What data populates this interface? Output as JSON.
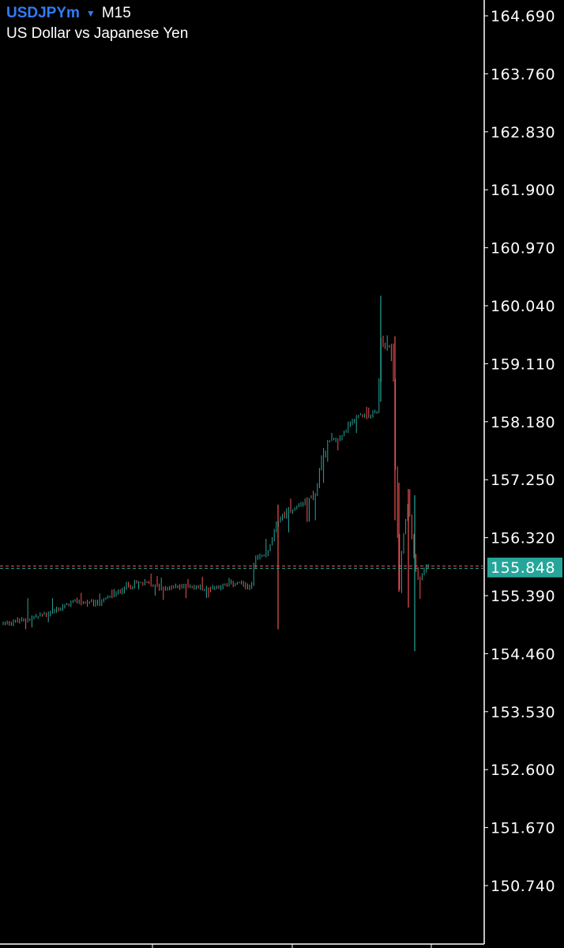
{
  "header": {
    "symbol": "USDJPYm",
    "timeframe": "M15",
    "description": "US Dollar vs Japanese Yen"
  },
  "colors": {
    "background": "#000000",
    "axis": "#ffffff",
    "bull_candle": "#26a69a",
    "bear_candle": "#ef5350",
    "current_price_box": "#26a69a",
    "symbol_text": "#2f7df6"
  },
  "current_price": {
    "value": 155.848,
    "label": "155.848"
  },
  "price_axis": {
    "labels": [
      "164.690",
      "163.760",
      "162.830",
      "161.900",
      "160.970",
      "160.040",
      "159.110",
      "158.180",
      "157.250",
      "156.320",
      "155.390",
      "154.460",
      "153.530",
      "152.600",
      "151.670",
      "150.740"
    ]
  },
  "chart_data": {
    "type": "candlestick",
    "title": "US Dollar vs Japanese Yen",
    "symbol": "USDJPYm",
    "timeframe": "M15",
    "ylim": [
      149.6,
      164.9
    ],
    "grid": false,
    "trend": "Slow rise from ~154.95 to ~155.55, jump to ~156.9, rally to peak ~160.2, sharp drop to ~154.5, recovery to ~155.85",
    "pivots": [
      {
        "close": 154.95,
        "high": 155.0,
        "low": 154.9
      },
      {
        "close": 155.0,
        "high": 155.35,
        "low": 154.85
      },
      {
        "close": 155.15,
        "high": 155.35,
        "low": 155.0
      },
      {
        "close": 155.3,
        "high": 155.45,
        "low": 155.15
      },
      {
        "close": 155.25,
        "high": 155.4,
        "low": 155.05
      },
      {
        "close": 155.4,
        "high": 155.5,
        "low": 155.3
      },
      {
        "close": 155.55,
        "high": 155.7,
        "low": 155.45
      },
      {
        "close": 155.6,
        "high": 155.8,
        "low": 155.5
      },
      {
        "close": 155.5,
        "high": 155.65,
        "low": 155.3
      },
      {
        "close": 155.55,
        "high": 155.65,
        "low": 155.35
      },
      {
        "close": 155.5,
        "high": 155.7,
        "low": 155.35
      },
      {
        "close": 155.55,
        "high": 155.65,
        "low": 155.4
      },
      {
        "close": 155.6,
        "high": 155.7,
        "low": 155.45
      },
      {
        "close": 155.5,
        "high": 155.65,
        "low": 155.4
      },
      {
        "close": 155.95,
        "high": 156.3,
        "low": 155.5
      },
      {
        "close": 156.1,
        "high": 156.3,
        "low": 155.9
      },
      {
        "close": 156.6,
        "high": 156.85,
        "low": 155.0
      },
      {
        "close": 156.75,
        "high": 156.95,
        "low": 156.4
      },
      {
        "close": 156.85,
        "high": 156.95,
        "low": 156.55
      },
      {
        "close": 157.0,
        "high": 157.1,
        "low": 156.6
      },
      {
        "close": 157.45,
        "high": 157.55,
        "low": 156.9
      },
      {
        "close": 157.85,
        "high": 158.0,
        "low": 157.55
      },
      {
        "close": 157.9,
        "high": 158.0,
        "low": 157.75
      },
      {
        "close": 158.2,
        "high": 158.45,
        "low": 157.95
      },
      {
        "close": 158.3,
        "high": 158.45,
        "low": 158.05
      },
      {
        "close": 158.25,
        "high": 158.4,
        "low": 158.1
      },
      {
        "close": 158.35,
        "high": 158.6,
        "low": 158.1
      },
      {
        "close": 159.5,
        "high": 160.2,
        "low": 158.5
      },
      {
        "close": 159.35,
        "high": 159.55,
        "low": 158.9
      },
      {
        "close": 159.4,
        "high": 159.6,
        "low": 159.2
      },
      {
        "close": 157.2,
        "high": 159.6,
        "low": 156.6
      },
      {
        "close": 155.7,
        "high": 157.2,
        "low": 155.5
      },
      {
        "close": 156.3,
        "high": 157.1,
        "low": 155.4
      },
      {
        "close": 156.9,
        "high": 157.15,
        "low": 155.8
      },
      {
        "close": 155.9,
        "high": 156.9,
        "low": 154.5
      },
      {
        "close": 155.6,
        "high": 155.9,
        "low": 155.3
      },
      {
        "close": 155.85,
        "high": 156.0,
        "low": 155.5
      },
      {
        "close": 155.85,
        "high": 155.95,
        "low": 155.7
      }
    ],
    "current_price": 155.848
  }
}
